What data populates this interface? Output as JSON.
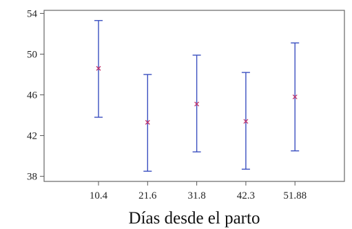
{
  "chart_data": {
    "type": "scatter",
    "subtype": "error-bar",
    "title": "",
    "xlabel": "Días desde el parto",
    "ylabel": "",
    "categories": [
      "10.4",
      "21.6",
      "31.8",
      "42.3",
      "51.88"
    ],
    "points": [
      {
        "x": "10.4",
        "mean": 48.6,
        "lower": 43.8,
        "upper": 53.3
      },
      {
        "x": "21.6",
        "mean": 43.3,
        "lower": 38.5,
        "upper": 48.0
      },
      {
        "x": "31.8",
        "mean": 45.1,
        "lower": 40.4,
        "upper": 49.9
      },
      {
        "x": "42.3",
        "mean": 43.4,
        "lower": 38.7,
        "upper": 48.2
      },
      {
        "x": "51.88",
        "mean": 45.8,
        "lower": 40.5,
        "upper": 51.1
      }
    ],
    "y_ticks": [
      "38",
      "42",
      "46",
      "50",
      "54"
    ],
    "ylim": [
      37.5,
      54.3
    ],
    "grid": false,
    "colors": {
      "error_bar": "#3a4fc0",
      "marker": "#c0306a",
      "axis": "#555555"
    }
  }
}
